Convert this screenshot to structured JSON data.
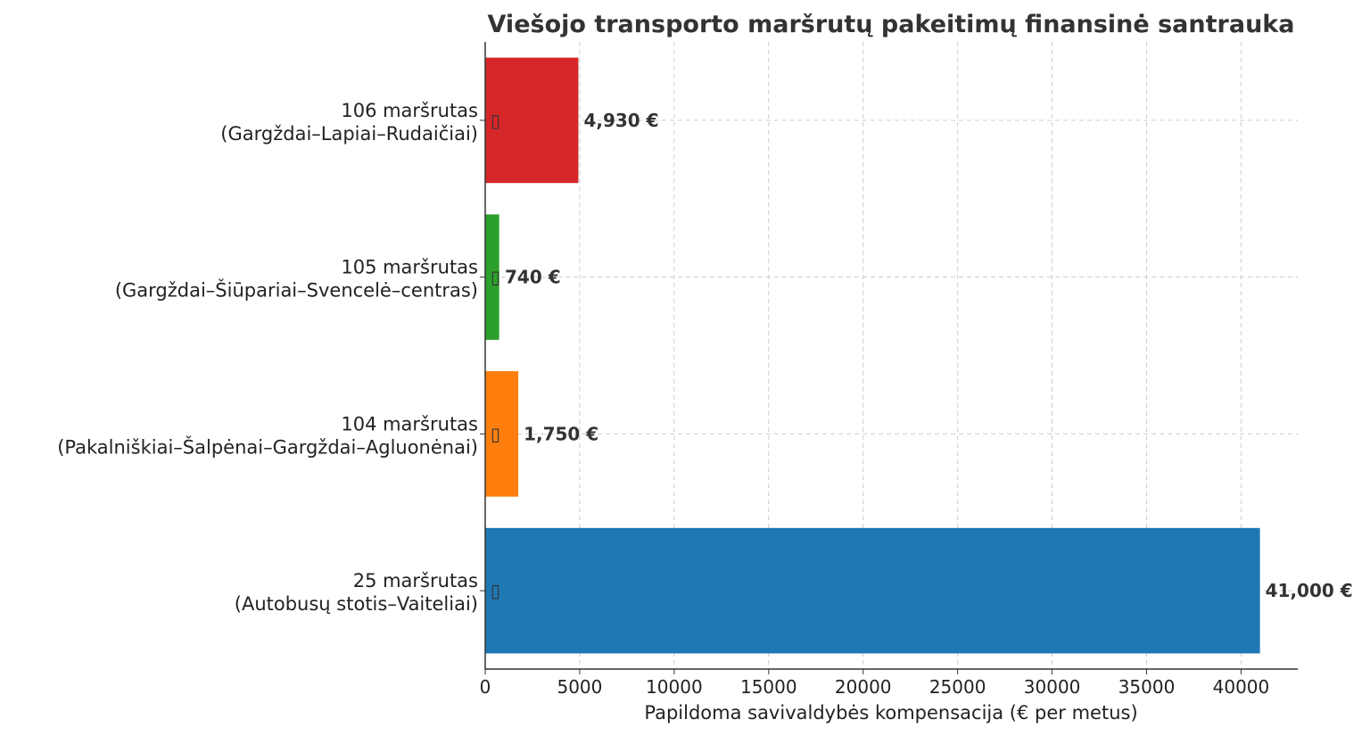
{
  "chart_data": {
    "type": "bar",
    "orientation": "horizontal",
    "title": "Viešojo transporto maršrutų pakeitimų finansinė santrauka",
    "xlabel": "Papildoma savivaldybės kompensacija (€ per metus)",
    "ylabel": "",
    "xlim": [
      0,
      43000
    ],
    "xticks": [
      0,
      5000,
      10000,
      15000,
      20000,
      25000,
      30000,
      35000,
      40000
    ],
    "grid": true,
    "legend": "none",
    "categories": [
      {
        "line1": "25 maršrutas",
        "line2": "(Autobusų stotis–Vaiteliai)"
      },
      {
        "line1": "104 maršrutas",
        "line2": "(Pakalniškiai–Šalpėnai–Gargždai–Agluonėnai)"
      },
      {
        "line1": "105 maršrutas",
        "line2": "(Gargždai–Šiūpariai–Svencelė–centras)"
      },
      {
        "line1": "106 maršrutas",
        "line2": "(Gargždai–Lapiai–Rudaičiai)"
      }
    ],
    "values": [
      41000,
      1750,
      740,
      4930
    ],
    "value_labels": [
      "41,000 €",
      "1,750 €",
      "740 €",
      "4,930 €"
    ],
    "bar_markers": [
      "▯",
      "▯",
      "▯",
      "▯"
    ],
    "colors": [
      "#1f77b4",
      "#ff7f0e",
      "#2ca02c",
      "#d62728"
    ]
  }
}
